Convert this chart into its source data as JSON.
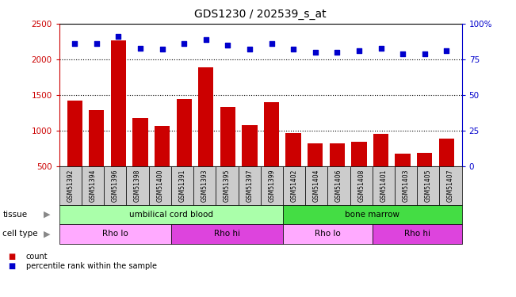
{
  "title": "GDS1230 / 202539_s_at",
  "samples": [
    "GSM51392",
    "GSM51394",
    "GSM51396",
    "GSM51398",
    "GSM51400",
    "GSM51391",
    "GSM51393",
    "GSM51395",
    "GSM51397",
    "GSM51399",
    "GSM51402",
    "GSM51404",
    "GSM51406",
    "GSM51408",
    "GSM51401",
    "GSM51403",
    "GSM51405",
    "GSM51407"
  ],
  "counts": [
    1420,
    1290,
    2270,
    1175,
    1065,
    1450,
    1890,
    1335,
    1080,
    1395,
    970,
    820,
    820,
    850,
    960,
    680,
    690,
    890
  ],
  "percentiles": [
    86,
    86,
    91,
    83,
    82,
    86,
    89,
    85,
    82,
    86,
    82,
    80,
    80,
    81,
    83,
    79,
    79,
    81
  ],
  "ylim_left": [
    500,
    2500
  ],
  "ylim_right": [
    0,
    100
  ],
  "yticks_left": [
    500,
    1000,
    1500,
    2000,
    2500
  ],
  "yticks_right": [
    0,
    25,
    50,
    75,
    100
  ],
  "bar_color": "#cc0000",
  "dot_color": "#0000cc",
  "tissue_labels": [
    {
      "text": "umbilical cord blood",
      "start": 0,
      "end": 9,
      "color": "#aaffaa"
    },
    {
      "text": "bone marrow",
      "start": 10,
      "end": 17,
      "color": "#44dd44"
    }
  ],
  "cell_type_labels": [
    {
      "text": "Rho lo",
      "start": 0,
      "end": 4,
      "color": "#ffaaff"
    },
    {
      "text": "Rho hi",
      "start": 5,
      "end": 9,
      "color": "#dd44dd"
    },
    {
      "text": "Rho lo",
      "start": 10,
      "end": 13,
      "color": "#ffaaff"
    },
    {
      "text": "Rho hi",
      "start": 14,
      "end": 17,
      "color": "#dd44dd"
    }
  ],
  "legend_count_color": "#cc0000",
  "legend_pct_color": "#0000cc",
  "left_axis_color": "#cc0000",
  "right_axis_color": "#0000cc",
  "xticklabel_bg": "#cccccc",
  "tissue_arrow_color": "#888888",
  "cell_type_arrow_color": "#888888"
}
